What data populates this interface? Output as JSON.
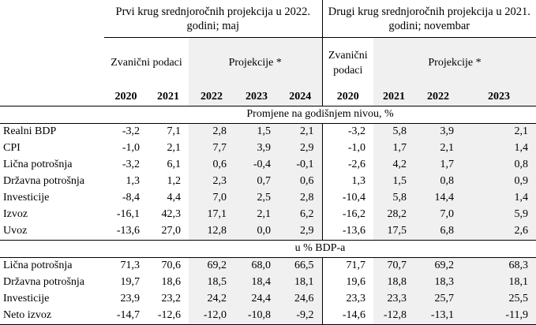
{
  "header": {
    "group1_title": "Prvi krug srednjoročnih projekcija u 2022. godini; maj",
    "group2_title": "Drugi krug srednjoročnih projekcija u 2021. godini; novembar",
    "official_label_1": "Zvanični podaci",
    "projections_label_1": "Projekcije *",
    "official_label_2": "Zvanični podaci",
    "projections_label_2": "Projekcije *",
    "years": [
      "2020",
      "2021",
      "2022",
      "2023",
      "2024",
      "2020",
      "2021",
      "2022",
      "2023"
    ]
  },
  "sections": [
    {
      "title": "Promjene na godišnjem nivou, %",
      "rows": [
        {
          "label": "Realni BDP",
          "values": [
            "-3,2",
            "7,1",
            "2,8",
            "1,5",
            "2,1",
            "-3,2",
            "5,8",
            "3,9",
            "2,1"
          ]
        },
        {
          "label": "CPI",
          "values": [
            "-1,0",
            "2,1",
            "7,7",
            "3,9",
            "2,9",
            "-1,0",
            "1,7",
            "2,1",
            "1,4"
          ]
        },
        {
          "label": "Lična potrošnja",
          "values": [
            "-3,2",
            "6,1",
            "0,6",
            "-0,4",
            "-0,1",
            "-2,6",
            "4,2",
            "1,7",
            "0,8"
          ]
        },
        {
          "label": "Državna potrošnja",
          "values": [
            "1,3",
            "1,2",
            "2,3",
            "0,7",
            "0,6",
            "1,3",
            "1,5",
            "0,8",
            "0,9"
          ]
        },
        {
          "label": "Investicije",
          "values": [
            "-8,4",
            "4,4",
            "7,0",
            "2,5",
            "2,8",
            "-10,4",
            "5,8",
            "14,4",
            "1,4"
          ]
        },
        {
          "label": "Izvoz",
          "values": [
            "-16,1",
            "42,3",
            "17,1",
            "2,1",
            "6,2",
            "-16,2",
            "28,2",
            "7,0",
            "5,9"
          ]
        },
        {
          "label": "Uvoz",
          "values": [
            "-13,6",
            "27,0",
            "12,8",
            "0,0",
            "2,9",
            "-13,6",
            "17,5",
            "6,8",
            "2,6"
          ]
        }
      ]
    },
    {
      "title": "u % BDP-a",
      "rows": [
        {
          "label": "Lična potrošnja",
          "values": [
            "71,3",
            "70,6",
            "69,2",
            "68,0",
            "66,5",
            "71,7",
            "70,7",
            "69,2",
            "68,3"
          ]
        },
        {
          "label": "Državna potrošnja",
          "values": [
            "19,7",
            "18,6",
            "18,5",
            "18,4",
            "18,1",
            "19,6",
            "18,8",
            "18,3",
            "18,1"
          ]
        },
        {
          "label": "Investicije",
          "values": [
            "23,9",
            "23,2",
            "24,2",
            "24,4",
            "24,6",
            "23,3",
            "23,3",
            "25,7",
            "25,5"
          ]
        },
        {
          "label": "Neto izvoz",
          "values": [
            "-14,7",
            "-12,6",
            "-12,0",
            "-10,8",
            "-9,2",
            "-14,6",
            "-12,8",
            "-13,1",
            "-11,9"
          ]
        }
      ]
    }
  ]
}
